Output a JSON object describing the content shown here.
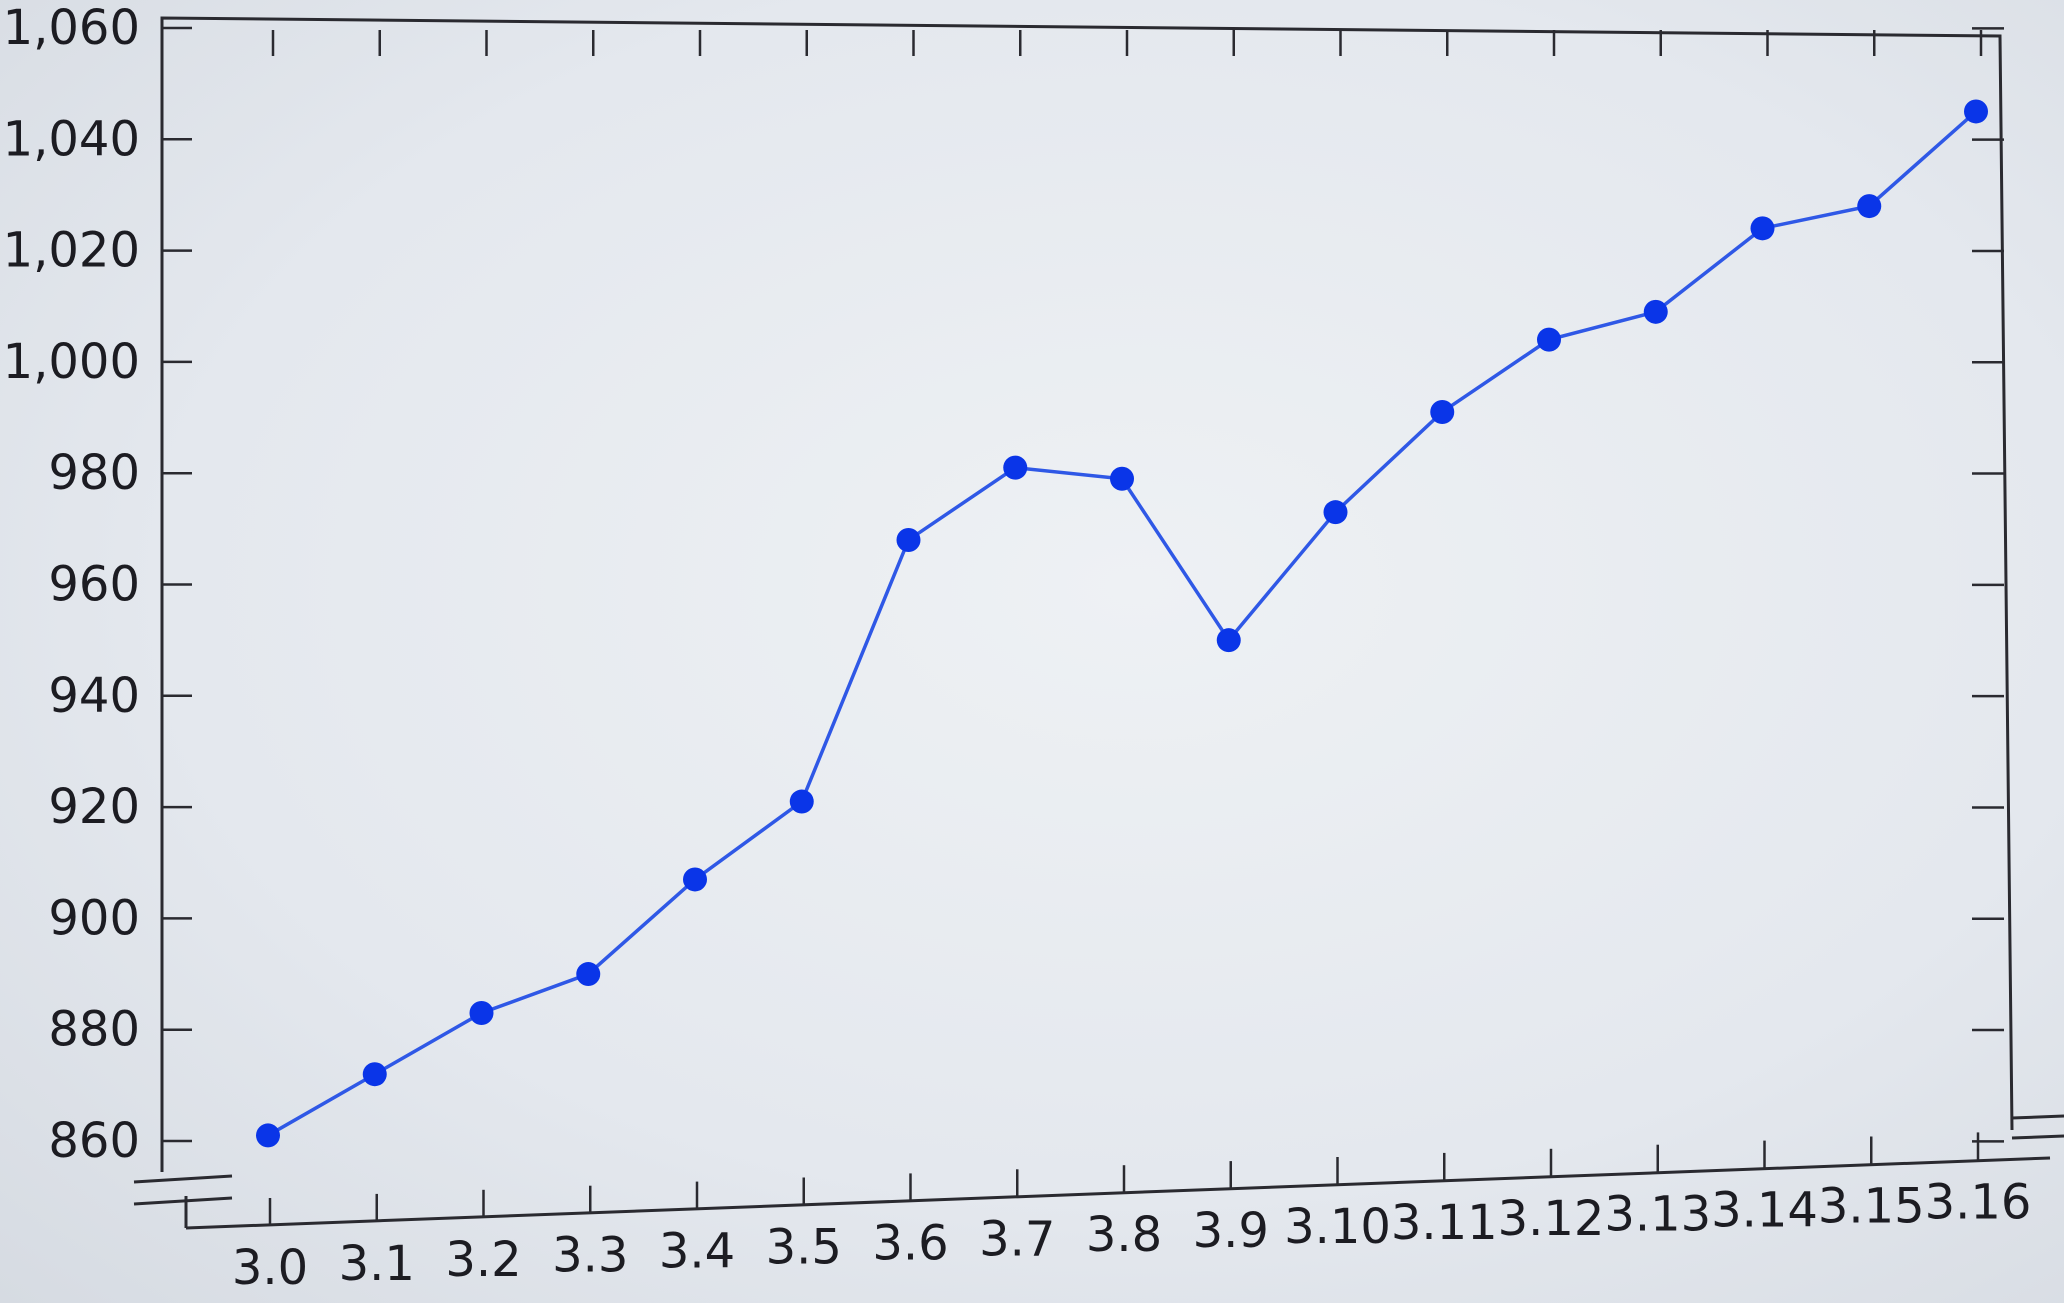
{
  "chart_data": {
    "type": "line",
    "categories": [
      "3.0",
      "3.1",
      "3.2",
      "3.3",
      "3.4",
      "3.5",
      "3.6",
      "3.7",
      "3.8",
      "3.9",
      "3.10",
      "3.11",
      "3.12",
      "3.13",
      "3.14",
      "3.15",
      "3.16"
    ],
    "series": [
      {
        "values": [
          861,
          872,
          883,
          890,
          907,
          921,
          968,
          981,
          979,
          950,
          973,
          991,
          1004,
          1009,
          1024,
          1028,
          1045
        ],
        "color": "#0a35e8"
      }
    ],
    "y_ticks": [
      860,
      880,
      900,
      920,
      940,
      960,
      980,
      1000,
      1020,
      1040,
      1060
    ],
    "y_tick_labels": [
      "860",
      "880",
      "900",
      "920",
      "940",
      "960",
      "980",
      "1,000",
      "1,020",
      "1,040",
      "1,060"
    ],
    "ylim": [
      860,
      1060
    ],
    "axis_break": true,
    "grid": false,
    "legend": "none",
    "title": "",
    "xlabel": "",
    "ylabel": ""
  }
}
